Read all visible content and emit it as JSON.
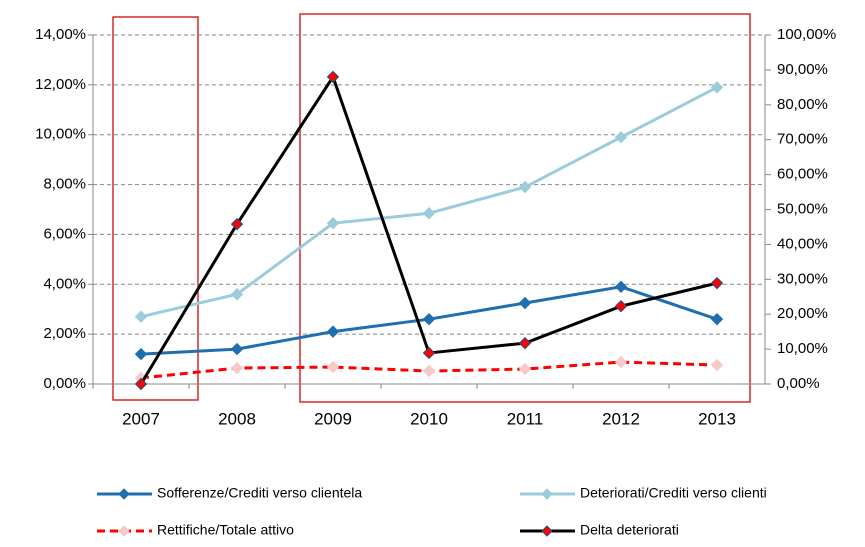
{
  "chart_data": {
    "type": "line",
    "categories": [
      "2007",
      "2008",
      "2009",
      "2010",
      "2011",
      "2012",
      "2013"
    ],
    "series": [
      {
        "name": "Sofferenze/Crediti verso clientela",
        "color": "#1f6fb0",
        "marker_color": "#1f6fb0",
        "values": [
          1.2,
          1.4,
          2.1,
          2.6,
          3.25,
          3.9,
          2.6
        ]
      },
      {
        "name": "Deteriorati/Crediti verso clienti",
        "color": "#9ccbdb",
        "marker_color": "#9ccbdb",
        "values": [
          2.7,
          3.6,
          6.45,
          6.85,
          7.9,
          9.9,
          11.9
        ]
      },
      {
        "name": "Rettifiche/Totale attivo",
        "color": "#ff0000",
        "marker_color": "#f7c9c9",
        "dashed": true,
        "values": [
          0.24,
          0.64,
          0.68,
          0.52,
          0.6,
          0.88,
          0.76
        ]
      },
      {
        "name": "Delta deteriorati",
        "color": "#000000",
        "marker_color": "#ff0000",
        "axis": "y2",
        "values": [
          0,
          45.8,
          88,
          8.9,
          11.7,
          22.3,
          28.9
        ]
      }
    ],
    "ylim": [
      0,
      14
    ],
    "yticks": [
      {
        "value": 0,
        "label": "0,00%"
      },
      {
        "value": 2,
        "label": "2,00%"
      },
      {
        "value": 4,
        "label": "4,00%"
      },
      {
        "value": 6,
        "label": "6,00%"
      },
      {
        "value": 8,
        "label": "8,00%"
      },
      {
        "value": 10,
        "label": "10,00%"
      },
      {
        "value": 12,
        "label": "12,00%"
      },
      {
        "value": 14,
        "label": "14,00%"
      }
    ],
    "y2lim": [
      0,
      100
    ],
    "y2ticks": [
      {
        "value": 0,
        "label": "0,00%"
      },
      {
        "value": 10,
        "label": "10,00%"
      },
      {
        "value": 20,
        "label": "20,00%"
      },
      {
        "value": 30,
        "label": "30,00%"
      },
      {
        "value": 40,
        "label": "40,00%"
      },
      {
        "value": 50,
        "label": "50,00%"
      },
      {
        "value": 60,
        "label": "60,00%"
      },
      {
        "value": 70,
        "label": "70,00%"
      },
      {
        "value": 80,
        "label": "80,00%"
      },
      {
        "value": 90,
        "label": "90,00%"
      },
      {
        "value": 100,
        "label": "100,00%"
      }
    ],
    "grid": true,
    "legend": "bottom"
  }
}
